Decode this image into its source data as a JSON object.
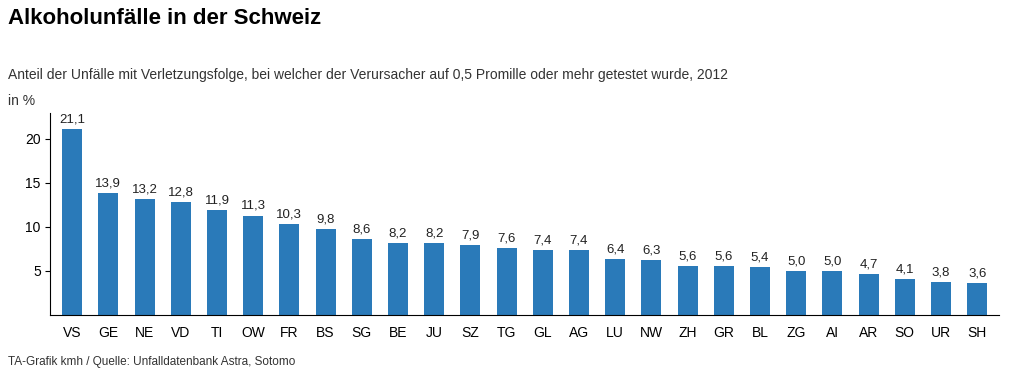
{
  "chart_data": {
    "type": "bar",
    "title": "Alkoholunfälle in der Schweiz",
    "subtitle": "Anteil der Unfälle mit Verletzungsfolge, bei welcher der Verursacher auf 0,5 Promille oder mehr getestet wurde, 2012",
    "ylabel": "in %",
    "source": "TA-Grafik kmh / Quelle: Unfalldatenbank Astra, Sotomo",
    "categories": [
      "VS",
      "GE",
      "NE",
      "VD",
      "TI",
      "OW",
      "FR",
      "BS",
      "SG",
      "BE",
      "JU",
      "SZ",
      "TG",
      "GL",
      "AG",
      "LU",
      "NW",
      "ZH",
      "GR",
      "BL",
      "ZG",
      "AI",
      "AR",
      "SO",
      "UR",
      "SH"
    ],
    "values": [
      21.1,
      13.9,
      13.2,
      12.8,
      11.9,
      11.3,
      10.3,
      9.8,
      8.6,
      8.2,
      8.2,
      7.9,
      7.6,
      7.4,
      7.4,
      6.4,
      6.3,
      5.6,
      5.6,
      5.4,
      5.0,
      5.0,
      4.7,
      4.1,
      3.8,
      3.6
    ],
    "value_labels": [
      "21,1",
      "13,9",
      "13,2",
      "12,8",
      "11,9",
      "11,3",
      "10,3",
      "9,8",
      "8,6",
      "8,2",
      "8,2",
      "7,9",
      "7,6",
      "7,4",
      "7,4",
      "6,4",
      "6,3",
      "5,6",
      "5,6",
      "5,4",
      "5,0",
      "5,0",
      "4,7",
      "4,1",
      "3,8",
      "3,6"
    ],
    "color": "#2a7ab9",
    "ylim": [
      0,
      23
    ],
    "yticks": [
      5,
      10,
      15,
      20
    ],
    "data_labels": true,
    "grid": false
  }
}
